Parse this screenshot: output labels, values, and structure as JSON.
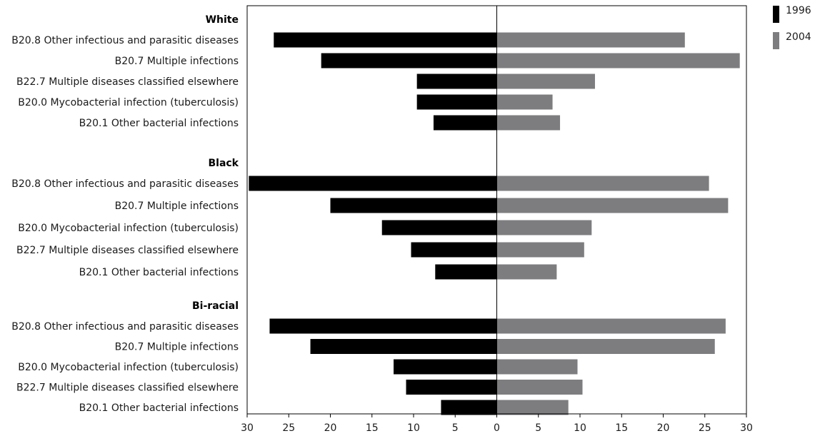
{
  "chart_data": {
    "type": "bar",
    "orientation": "horizontal-diverging",
    "title": "",
    "xlabel": "",
    "ylabel": "",
    "xlim": [
      -30,
      30
    ],
    "x_ticks": [
      "30",
      "25",
      "20",
      "15",
      "10",
      "5",
      "0",
      "5",
      "10",
      "15",
      "20",
      "25",
      "30"
    ],
    "legend": {
      "placement": "top-right",
      "entries": [
        "1996",
        "2004"
      ]
    },
    "series_colors": {
      "1996": "#000000",
      "2004": "#7d7d80"
    },
    "grid": false,
    "groups": [
      {
        "name": "White",
        "categories": [
          "B20.8 Other infectious and parasitic diseases",
          "B20.7 Multiple infections",
          "B22.7 Multiple diseases classified elsewhere",
          "B20.0 Mycobacterial infection (tuberculosis)",
          "B20.1 Other bacterial infections"
        ],
        "series": [
          {
            "name": "1996",
            "values": [
              26.8,
              21.1,
              9.6,
              9.6,
              7.6
            ]
          },
          {
            "name": "2004",
            "values": [
              22.6,
              29.2,
              11.8,
              6.7,
              7.6
            ]
          }
        ]
      },
      {
        "name": "Black",
        "categories": [
          "B20.8 Other infectious and parasitic diseases",
          "B20.7 Multiple infections",
          "B20.0 Mycobacterial infection (tuberculosis)",
          "B22.7 Multiple diseases classified elsewhere",
          "B20.1 Other bacterial infections"
        ],
        "series": [
          {
            "name": "1996",
            "values": [
              29.8,
              20.0,
              13.8,
              10.3,
              7.4
            ]
          },
          {
            "name": "2004",
            "values": [
              25.5,
              27.8,
              11.4,
              10.5,
              7.2
            ]
          }
        ]
      },
      {
        "name": "Bi-racial",
        "categories": [
          "B20.8 Other infectious and parasitic diseases",
          "B20.7 Multiple infections",
          "B20.0 Mycobacterial infection (tuberculosis)",
          "B22.7 Multiple diseases classified elsewhere",
          "B20.1 Other bacterial infections"
        ],
        "series": [
          {
            "name": "1996",
            "values": [
              27.3,
              22.4,
              12.4,
              10.9,
              6.7
            ]
          },
          {
            "name": "2004",
            "values": [
              27.5,
              26.2,
              9.7,
              10.3,
              8.6
            ]
          }
        ]
      }
    ]
  }
}
